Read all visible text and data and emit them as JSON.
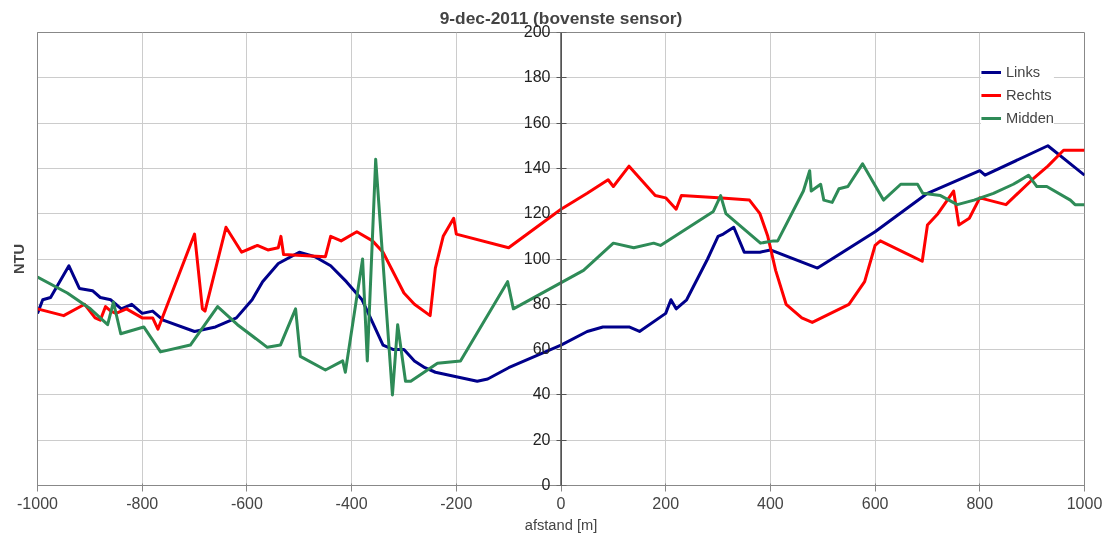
{
  "chart_data": {
    "type": "line",
    "title": "9-dec-2011 (bovenste sensor)",
    "xlabel": "afstand [m]",
    "ylabel": "NTU",
    "xlim": [
      -1000,
      1000
    ],
    "ylim": [
      0,
      200
    ],
    "xticks": [
      -1000,
      -800,
      -600,
      -400,
      -200,
      0,
      200,
      400,
      600,
      800,
      1000
    ],
    "yticks": [
      0,
      20,
      40,
      60,
      80,
      100,
      120,
      140,
      160,
      180,
      200
    ],
    "grid": true,
    "legend": "top right",
    "marker": "none",
    "line_style": "solid",
    "series": [
      {
        "name": "Links",
        "color": "#00008b",
        "x": [
          -1000,
          -990,
          -975,
          -940,
          -920,
          -895,
          -880,
          -860,
          -840,
          -820,
          -800,
          -780,
          -760,
          -700,
          -660,
          -620,
          -590,
          -570,
          -540,
          -500,
          -470,
          -440,
          -410,
          -380,
          -360,
          -340,
          -320,
          -300,
          -280,
          -260,
          -240,
          -220,
          -200,
          -180,
          -160,
          -140,
          -100,
          0,
          50,
          80,
          130,
          150,
          200,
          210,
          220,
          240,
          280,
          300,
          310,
          330,
          350,
          380,
          400,
          490,
          600,
          700,
          800,
          810,
          930,
          1000
        ],
        "values": [
          76,
          82,
          83,
          97,
          87,
          86,
          83,
          82,
          78,
          80,
          76,
          77,
          73,
          68,
          70,
          74,
          82,
          90,
          98,
          103,
          101,
          97,
          90,
          82,
          72,
          62,
          60,
          60,
          55,
          52,
          50,
          49,
          48,
          47,
          46,
          47,
          52,
          62,
          68,
          70,
          70,
          68,
          76,
          82,
          78,
          82,
          100,
          110,
          111,
          114,
          103,
          103,
          104,
          96,
          112,
          129,
          139,
          137,
          150,
          137
        ]
      },
      {
        "name": "Rechts",
        "color": "#ff0000",
        "x": [
          -1000,
          -950,
          -910,
          -890,
          -880,
          -870,
          -860,
          -850,
          -830,
          -800,
          -780,
          -770,
          -700,
          -685,
          -680,
          -640,
          -610,
          -580,
          -560,
          -540,
          -535,
          -530,
          -450,
          -440,
          -420,
          -390,
          -360,
          -340,
          -300,
          -280,
          -250,
          -240,
          -225,
          -205,
          -200,
          -100,
          0,
          50,
          90,
          100,
          130,
          180,
          200,
          220,
          230,
          300,
          360,
          380,
          395,
          410,
          430,
          460,
          480,
          550,
          580,
          600,
          610,
          690,
          700,
          720,
          750,
          760,
          780,
          800,
          850,
          900,
          930,
          960,
          1000
        ],
        "values": [
          78,
          75,
          80,
          74,
          73,
          79,
          77,
          76,
          78,
          74,
          74,
          69,
          111,
          78,
          77,
          114,
          103,
          106,
          104,
          105,
          110,
          102,
          101,
          110,
          108,
          112,
          108,
          103,
          85,
          80,
          75,
          96,
          110,
          118,
          111,
          105,
          122,
          129,
          135,
          132,
          141,
          128,
          127,
          122,
          128,
          127,
          126,
          120,
          110,
          95,
          80,
          74,
          72,
          80,
          90,
          106,
          108,
          99,
          115,
          120,
          130,
          115,
          118,
          127,
          124,
          135,
          141,
          148,
          148
        ]
      },
      {
        "name": "Midden",
        "color": "#2e8b57",
        "x": [
          -1000,
          -943,
          -899,
          -866,
          -855,
          -841,
          -797,
          -765,
          -708,
          -656,
          -618,
          -561,
          -536,
          -507,
          -498,
          -450,
          -417,
          -412,
          -379,
          -370,
          -354,
          -322,
          -312,
          -297,
          -287,
          -236,
          -192,
          -102,
          -91,
          43,
          100,
          139,
          177,
          190,
          291,
          305,
          315,
          381,
          406,
          414,
          463,
          475,
          478,
          496,
          502,
          518,
          531,
          548,
          576,
          616,
          649,
          681,
          691,
          725,
          757,
          789,
          826,
          864,
          893,
          909,
          928,
          973,
          982,
          1000
        ],
        "values": [
          92,
          85,
          78,
          71,
          81,
          67,
          70,
          59,
          62,
          79,
          71,
          61,
          62,
          78,
          57,
          51,
          55,
          50,
          100,
          55,
          144,
          40,
          71,
          46,
          46,
          54,
          55,
          90,
          78,
          95,
          107,
          105,
          107,
          106,
          121,
          128,
          120,
          107,
          108,
          108,
          130,
          139,
          130,
          133,
          126,
          125,
          131,
          132,
          142,
          126,
          133,
          133,
          129,
          128,
          124,
          126,
          129,
          133,
          137,
          132,
          132,
          126,
          124,
          124
        ]
      }
    ]
  }
}
